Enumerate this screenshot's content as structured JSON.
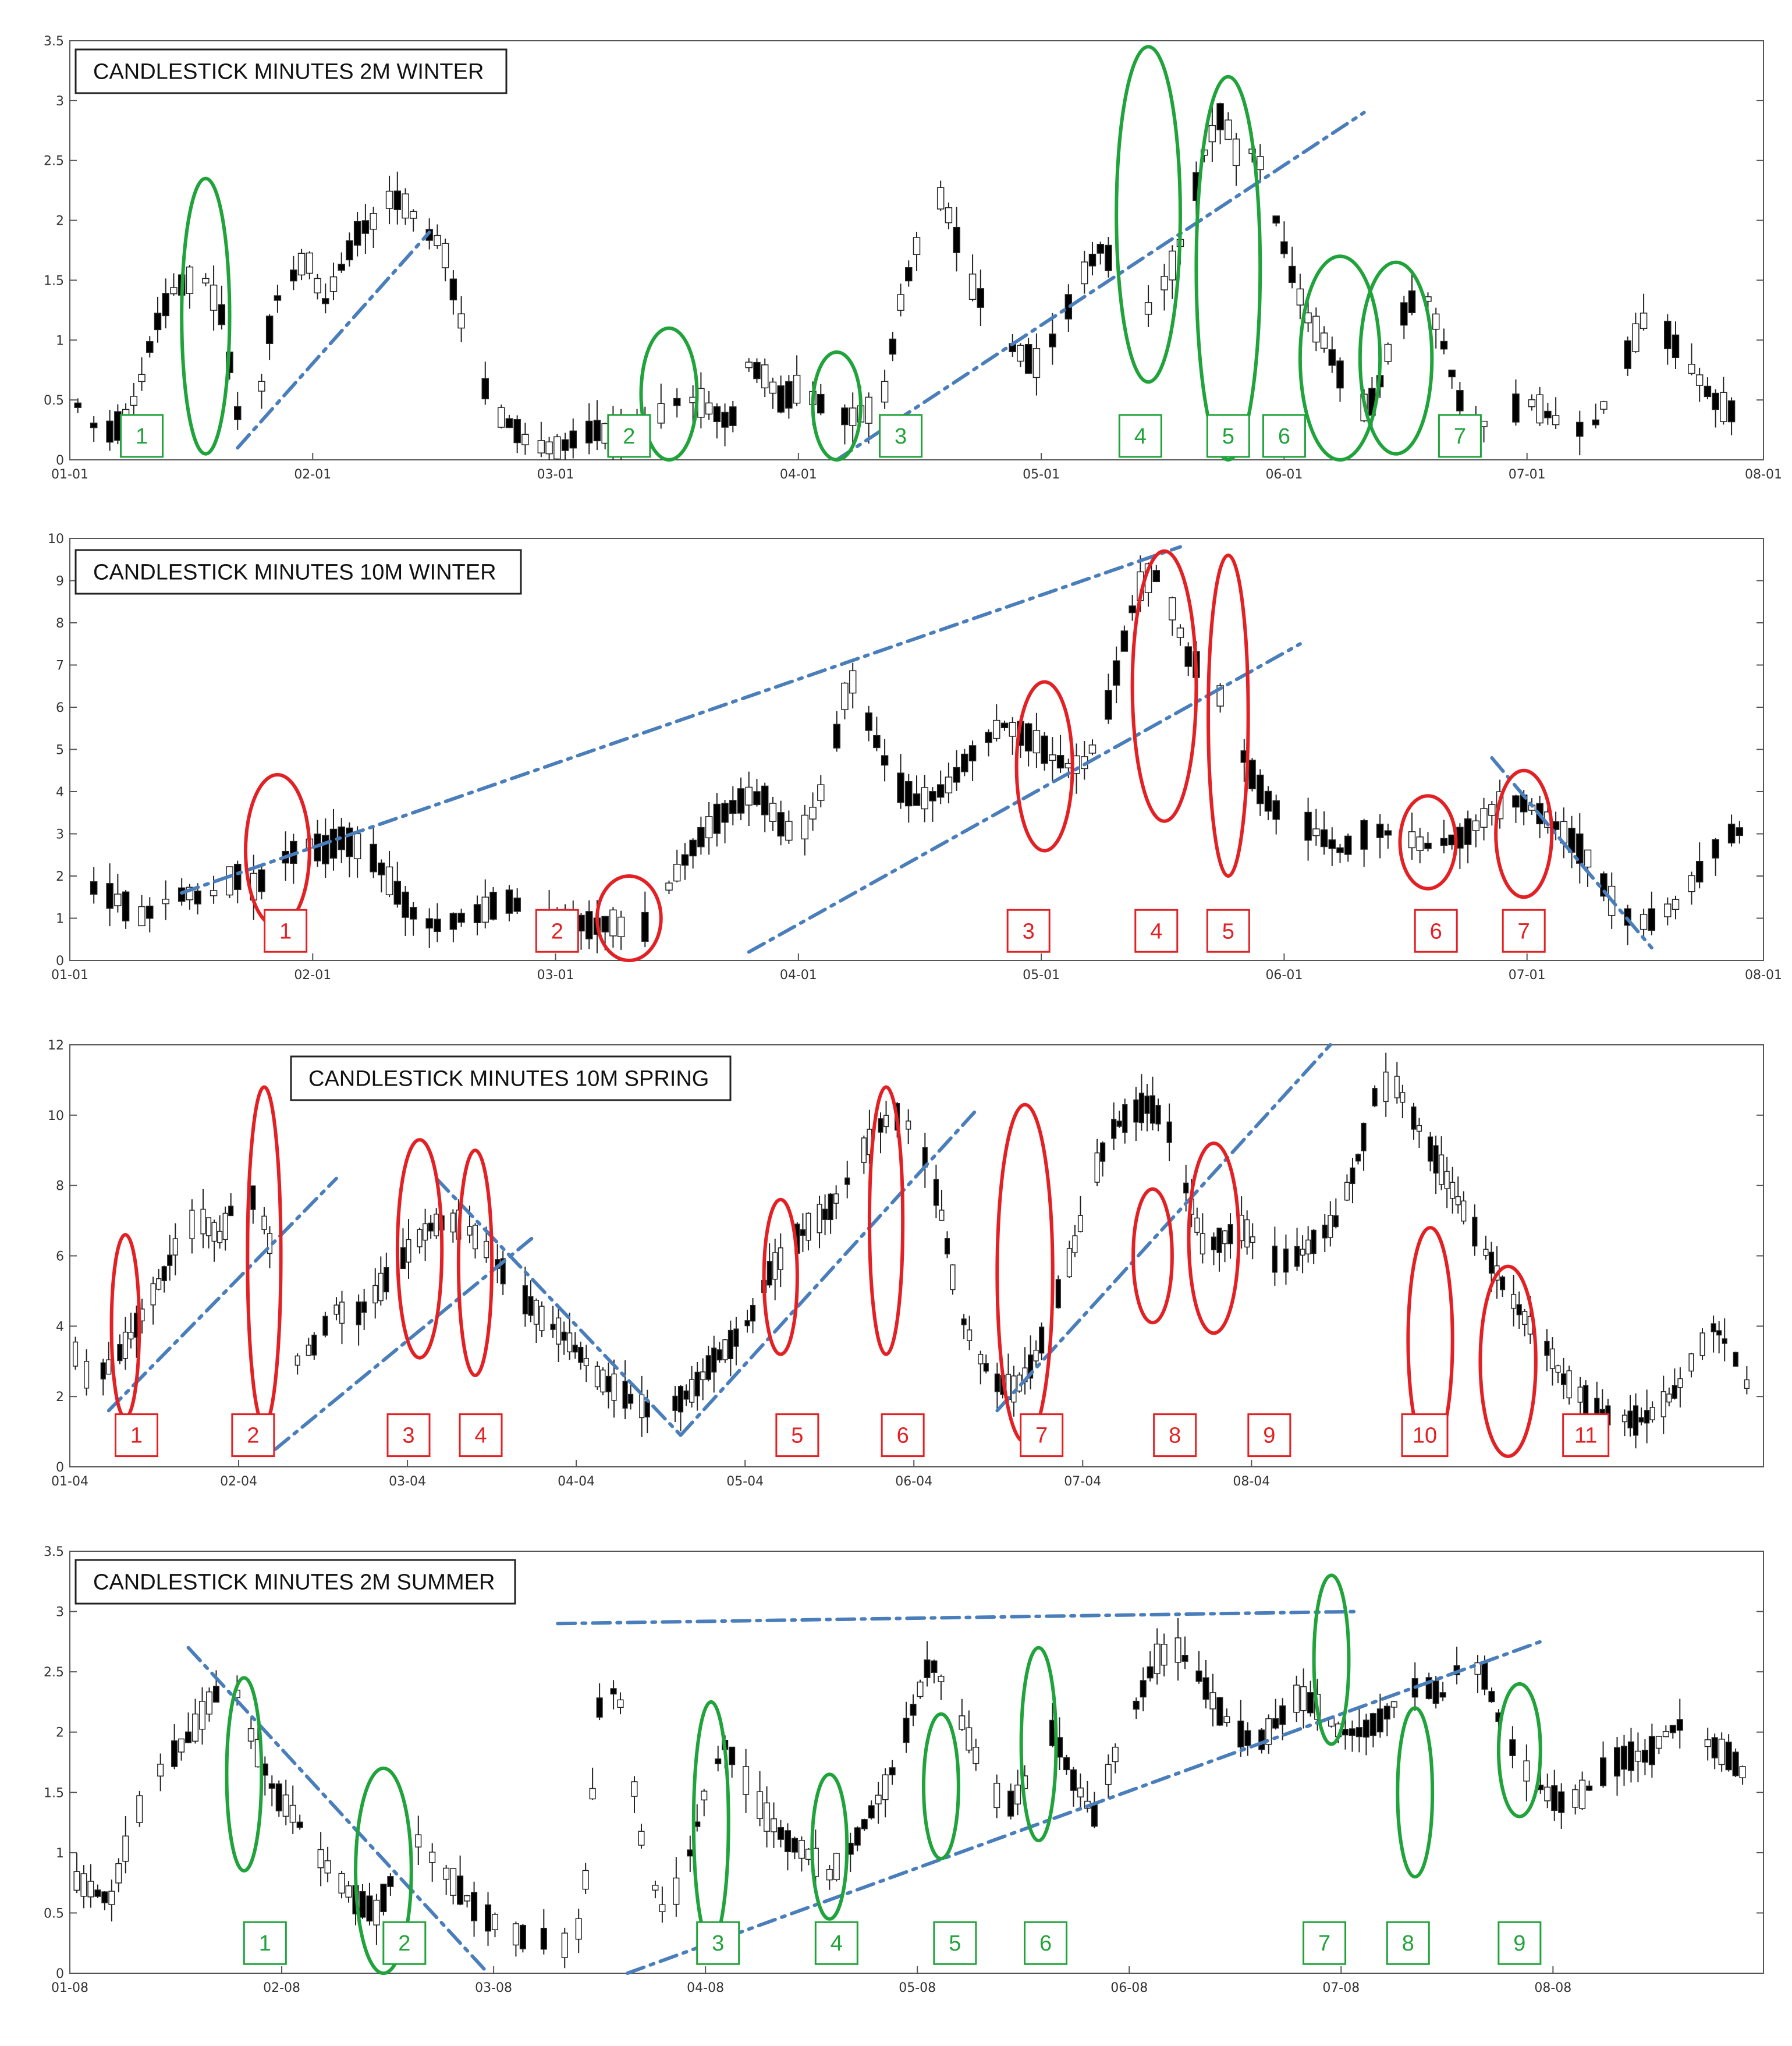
{
  "chart_data": [
    {
      "type": "candlestick",
      "title": "CANDLESTICK MINUTES 2M WINTER",
      "xlabel": "",
      "ylabel": "",
      "x_ticks": [
        "01-01",
        "02-01",
        "03-01",
        "04-01",
        "05-01",
        "06-01",
        "07-01",
        "08-01"
      ],
      "y_ticks": [
        "0",
        "0.5",
        "1",
        "1.5",
        "2",
        "2.5",
        "3",
        "3.5"
      ],
      "ylim": [
        0,
        3.5
      ],
      "annotation_color": "#1fa33a",
      "trend_color": "#4a7ebb",
      "labels": [
        "1",
        "2",
        "3",
        "4",
        "5",
        "6",
        "7"
      ],
      "levels": [
        0.55,
        0.35,
        0.2,
        0.3,
        0.55,
        1.1,
        1.4,
        1.5,
        1.5,
        1.2,
        0.3,
        0.3,
        1.3,
        1.5,
        1.7,
        1.3,
        1.6,
        1.9,
        2.0,
        2.2,
        2.1,
        1.9,
        1.8,
        1.2,
        0.8,
        0.4,
        0.3,
        0.15,
        0.1,
        0.1,
        0.2,
        0.25,
        0.2,
        0.2,
        0.3,
        0.4,
        0.5,
        0.5,
        0.4,
        0.3,
        0.8,
        0.7,
        0.5,
        0.6,
        0.5,
        0.4,
        0.35,
        0.4,
        0.5,
        1.3,
        1.8,
        2.3,
        2.0,
        1.5,
        1.3,
        1.0,
        0.9,
        0.8,
        1.0,
        1.3,
        1.6,
        1.8,
        1.4,
        1.2,
        1.3,
        1.6,
        2.0,
        2.6,
        2.9,
        2.5,
        2.6,
        2.1,
        1.6,
        1.2,
        1.0,
        0.7,
        0.4,
        0.5,
        1.0,
        1.3,
        1.4,
        1.0,
        0.5,
        0.3,
        0.3,
        0.4,
        0.5,
        0.4,
        0.3,
        0.25,
        0.3,
        0.6,
        0.9,
        1.2,
        1.1,
        0.9,
        0.7,
        0.5,
        0.4,
        0.5
      ],
      "ellipses": [
        {
          "day": 17,
          "level": 1.2,
          "rx_days": 3,
          "ry": 1.15
        },
        {
          "day": 75,
          "level": 0.55,
          "rx_days": 3.5,
          "ry": 0.55
        },
        {
          "day": 96,
          "level": 0.45,
          "rx_days": 3,
          "ry": 0.45
        },
        {
          "day": 135,
          "level": 2.05,
          "rx_days": 4,
          "ry": 1.4
        },
        {
          "day": 145,
          "level": 1.6,
          "rx_days": 4,
          "ry": 1.6
        },
        {
          "day": 159,
          "level": 0.85,
          "rx_days": 5,
          "ry": 0.85
        },
        {
          "day": 166,
          "level": 0.85,
          "rx_days": 4.5,
          "ry": 0.8
        }
      ],
      "label_positions": [
        {
          "day": 9,
          "level": 0.2
        },
        {
          "day": 70,
          "level": 0.2
        },
        {
          "day": 104,
          "level": 0.2
        },
        {
          "day": 134,
          "level": 0.2
        },
        {
          "day": 145,
          "level": 0.2
        },
        {
          "day": 152,
          "level": 0.2
        },
        {
          "day": 174,
          "level": 0.2
        }
      ],
      "trendlines": [
        {
          "from": [
            21,
            0.1
          ],
          "to": [
            45,
            1.9
          ]
        },
        {
          "from": [
            96,
            0.0
          ],
          "to": [
            162,
            2.9
          ]
        }
      ]
    },
    {
      "type": "candlestick",
      "title": "CANDLESTICK MINUTES 10M WINTER",
      "xlabel": "",
      "ylabel": "",
      "x_ticks": [
        "01-01",
        "02-01",
        "03-01",
        "04-01",
        "05-01",
        "06-01",
        "07-01",
        "08-01"
      ],
      "y_ticks": [
        "0",
        "1",
        "2",
        "3",
        "4",
        "5",
        "6",
        "7",
        "8",
        "9",
        "10"
      ],
      "ylim": [
        0,
        10
      ],
      "annotation_color": "#e32124",
      "trend_color": "#4a7ebb",
      "labels": [
        "1",
        "2",
        "3",
        "4",
        "5",
        "6",
        "7"
      ],
      "levels": [
        1.9,
        1.8,
        1.6,
        1.4,
        1.0,
        1.2,
        1.5,
        1.6,
        1.4,
        1.8,
        2.0,
        1.7,
        2.3,
        2.5,
        2.8,
        2.6,
        2.9,
        2.7,
        2.4,
        1.8,
        1.2,
        0.9,
        0.8,
        1.0,
        1.1,
        1.3,
        1.4,
        1.2,
        1.0,
        1.1,
        0.9,
        0.8,
        0.9,
        0.7,
        0.8,
        1.5,
        2.2,
        2.8,
        3.3,
        3.6,
        3.9,
        3.8,
        3.2,
        2.9,
        3.6,
        4.8,
        6.8,
        5.8,
        4.8,
        4.1,
        3.8,
        3.9,
        4.2,
        4.8,
        5.2,
        5.6,
        5.4,
        5.2,
        4.8,
        4.6,
        4.7,
        5.6,
        7.2,
        8.8,
        9.2,
        8.4,
        7.2,
        6.8,
        6.2,
        5.1,
        4.2,
        3.6,
        3.4,
        3.2,
        2.9,
        2.6,
        2.9,
        3.1,
        3.0,
        2.9,
        2.7,
        2.8,
        2.9,
        3.2,
        3.6,
        3.8,
        3.7,
        3.4,
        3.1,
        2.7,
        2.2,
        1.4,
        1.0,
        0.9,
        1.1,
        1.4,
        2.0,
        2.6,
        3.0,
        3.1
      ],
      "ellipses": [
        {
          "day": 26,
          "level": 2.6,
          "rx_days": 4,
          "ry": 1.8
        },
        {
          "day": 70,
          "level": 1.0,
          "rx_days": 4,
          "ry": 1.0
        },
        {
          "day": 122,
          "level": 4.6,
          "rx_days": 3.5,
          "ry": 2.0
        },
        {
          "day": 137,
          "level": 6.5,
          "rx_days": 4,
          "ry": 3.2
        },
        {
          "day": 145,
          "level": 5.8,
          "rx_days": 2.5,
          "ry": 3.8
        },
        {
          "day": 170,
          "level": 2.8,
          "rx_days": 3.5,
          "ry": 1.1
        },
        {
          "day": 182,
          "level": 3.0,
          "rx_days": 3.5,
          "ry": 1.5
        }
      ],
      "label_positions": [
        {
          "day": 27,
          "level": 0.7
        },
        {
          "day": 61,
          "level": 0.7
        },
        {
          "day": 120,
          "level": 0.7
        },
        {
          "day": 136,
          "level": 0.7
        },
        {
          "day": 145,
          "level": 0.7
        },
        {
          "day": 171,
          "level": 0.7
        },
        {
          "day": 182,
          "level": 0.7
        }
      ],
      "trendlines": [
        {
          "from": [
            14,
            1.6
          ],
          "to": [
            139,
            9.8
          ]
        },
        {
          "from": [
            85,
            0.2
          ],
          "to": [
            154,
            7.5
          ]
        },
        {
          "from": [
            178,
            4.8
          ],
          "to": [
            198,
            0.3
          ]
        }
      ]
    },
    {
      "type": "candlestick",
      "title": "CANDLESTICK MINUTES 10M SPRING",
      "xlabel": "",
      "ylabel": "",
      "x_ticks": [
        "01-04",
        "02-04",
        "03-04",
        "04-04",
        "05-04",
        "06-04",
        "07-04",
        "08-04"
      ],
      "y_ticks": [
        "0",
        "2",
        "4",
        "6",
        "8",
        "10",
        "12"
      ],
      "ylim": [
        0,
        12
      ],
      "annotation_color": "#e32124",
      "trend_color": "#4a7ebb",
      "labels": [
        "1",
        "2",
        "3",
        "4",
        "5",
        "6",
        "7",
        "8",
        "9",
        "10",
        "11"
      ],
      "levels": [
        3.5,
        2.5,
        2.8,
        3.5,
        4.5,
        5.5,
        6.8,
        7.0,
        6.5,
        8.0,
        7.5,
        5.5,
        3.0,
        3.5,
        4.5,
        4.2,
        4.8,
        5.5,
        6.2,
        6.8,
        7.0,
        6.8,
        6.2,
        5.5,
        4.8,
        4.2,
        3.8,
        3.2,
        2.5,
        2.2,
        1.8,
        1.5,
        1.8,
        2.2,
        3.0,
        3.5,
        4.2,
        5.5,
        6.2,
        6.8,
        7.2,
        8.0,
        9.0,
        9.8,
        10.0,
        9.2,
        7.5,
        4.5,
        3.2,
        2.4,
        2.2,
        3.0,
        4.5,
        6.0,
        8.0,
        9.5,
        10.0,
        10.3,
        9.8,
        8.0,
        6.2,
        6.5,
        6.8,
        6.2,
        5.8,
        6.0,
        6.5,
        7.0,
        8.5,
        10.5,
        11.0,
        10.0,
        9.0,
        8.0,
        7.0,
        6.0,
        5.0,
        4.2,
        3.5,
        2.5,
        2.0,
        1.5,
        1.4,
        1.3,
        1.6,
        2.2,
        3.2,
        4.0,
        3.2,
        2.0
      ],
      "ellipses": [
        {
          "day": 10,
          "level": 4.0,
          "rx_days": 2.5,
          "ry": 2.6
        },
        {
          "day": 35,
          "level": 6.0,
          "rx_days": 3,
          "ry": 4.8
        },
        {
          "day": 63,
          "level": 6.2,
          "rx_days": 4,
          "ry": 3.1
        },
        {
          "day": 73,
          "level": 5.8,
          "rx_days": 3,
          "ry": 3.2
        },
        {
          "day": 128,
          "level": 5.4,
          "rx_days": 3,
          "ry": 2.2
        },
        {
          "day": 147,
          "level": 7.0,
          "rx_days": 3,
          "ry": 3.8
        },
        {
          "day": 172,
          "level": 5.5,
          "rx_days": 5,
          "ry": 4.8
        },
        {
          "day": 195,
          "level": 6.0,
          "rx_days": 3.5,
          "ry": 1.9
        },
        {
          "day": 206,
          "level": 6.5,
          "rx_days": 4.5,
          "ry": 2.7
        },
        {
          "day": 245,
          "level": 3.6,
          "rx_days": 4,
          "ry": 3.2
        },
        {
          "day": 259,
          "level": 3.0,
          "rx_days": 5,
          "ry": 2.7
        }
      ],
      "label_positions": [
        {
          "day": 12,
          "level": 0.9
        },
        {
          "day": 33,
          "level": 0.9
        },
        {
          "day": 61,
          "level": 0.9
        },
        {
          "day": 74,
          "level": 0.9
        },
        {
          "day": 131,
          "level": 0.9
        },
        {
          "day": 150,
          "level": 0.9
        },
        {
          "day": 175,
          "level": 0.9
        },
        {
          "day": 199,
          "level": 0.9
        },
        {
          "day": 216,
          "level": 0.9
        },
        {
          "day": 244,
          "level": 0.9
        },
        {
          "day": 273,
          "level": 0.9
        }
      ],
      "trendlines": [
        {
          "from": [
            7,
            1.6
          ],
          "to": [
            48,
            8.2
          ]
        },
        {
          "from": [
            37,
            0.5
          ],
          "to": [
            84,
            6.6
          ]
        },
        {
          "from": [
            66,
            8.2
          ],
          "to": [
            110,
            0.9
          ]
        },
        {
          "from": [
            110,
            0.9
          ],
          "to": [
            163,
            10.1
          ]
        },
        {
          "from": [
            167,
            1.6
          ],
          "to": [
            227,
            12.0
          ]
        }
      ]
    },
    {
      "type": "candlestick",
      "title": "CANDLESTICK MINUTES 2M SUMMER",
      "xlabel": "",
      "ylabel": "",
      "x_ticks": [
        "01-08",
        "02-08",
        "03-08",
        "04-08",
        "05-08",
        "06-08",
        "07-08",
        "08-08"
      ],
      "y_ticks": [
        "0",
        "0.5",
        "1",
        "1.5",
        "2",
        "2.5",
        "3",
        "3.5"
      ],
      "ylim": [
        0,
        3.5
      ],
      "annotation_color": "#1fa33a",
      "trend_color": "#4a7ebb",
      "labels": [
        "1",
        "2",
        "3",
        "4",
        "5",
        "6",
        "7",
        "8",
        "9"
      ],
      "levels": [
        0.8,
        0.7,
        0.6,
        1.2,
        1.6,
        1.8,
        2.0,
        2.3,
        2.4,
        1.9,
        1.5,
        1.3,
        1.0,
        0.8,
        0.6,
        0.5,
        0.9,
        1.1,
        0.9,
        0.7,
        0.5,
        0.4,
        0.3,
        0.3,
        0.2,
        0.4,
        2.5,
        2.2,
        1.0,
        0.5,
        0.8,
        1.5,
        1.9,
        1.6,
        1.3,
        1.1,
        1.0,
        0.8,
        1.0,
        1.3,
        1.6,
        2.1,
        2.6,
        2.3,
        1.9,
        1.5,
        1.4,
        1.7,
        2.0,
        1.6,
        1.3,
        1.8,
        2.2,
        2.6,
        2.7,
        2.5,
        2.2,
        2.0,
        1.9,
        2.1,
        2.3,
        2.2,
        2.0,
        2.0,
        2.1,
        2.3,
        2.4,
        2.3,
        2.6,
        2.5,
        2.0,
        1.7,
        1.5,
        1.4,
        1.5,
        1.7,
        1.8,
        1.8,
        2.0,
        2.1,
        1.9,
        1.8,
        1.6
      ],
      "ellipses": [
        {
          "day": 25,
          "level": 1.65,
          "rx_days": 2.5,
          "ry": 0.8
        },
        {
          "day": 45,
          "level": 0.85,
          "rx_days": 4,
          "ry": 0.85
        },
        {
          "day": 92,
          "level": 1.25,
          "rx_days": 2.5,
          "ry": 1.0
        },
        {
          "day": 109,
          "level": 1.05,
          "rx_days": 2.5,
          "ry": 0.6
        },
        {
          "day": 125,
          "level": 1.55,
          "rx_days": 2.5,
          "ry": 0.6
        },
        {
          "day": 139,
          "level": 1.9,
          "rx_days": 2.5,
          "ry": 0.8
        },
        {
          "day": 181,
          "level": 2.6,
          "rx_days": 2.5,
          "ry": 0.7
        },
        {
          "day": 193,
          "level": 1.5,
          "rx_days": 2.5,
          "ry": 0.7
        },
        {
          "day": 208,
          "level": 1.85,
          "rx_days": 3,
          "ry": 0.55
        }
      ],
      "label_positions": [
        {
          "day": 28,
          "level": 0.25
        },
        {
          "day": 48,
          "level": 0.25
        },
        {
          "day": 93,
          "level": 0.25
        },
        {
          "day": 110,
          "level": 0.25
        },
        {
          "day": 127,
          "level": 0.25
        },
        {
          "day": 140,
          "level": 0.25
        },
        {
          "day": 180,
          "level": 0.25
        },
        {
          "day": 192,
          "level": 0.25
        },
        {
          "day": 208,
          "level": 0.25
        }
      ],
      "trendlines": [
        {
          "from": [
            17,
            2.7
          ],
          "to": [
            60,
            0.0
          ]
        },
        {
          "from": [
            70,
            2.9
          ],
          "to": [
            185,
            3.0
          ]
        },
        {
          "from": [
            80,
            0.0
          ],
          "to": [
            211,
            2.75
          ]
        }
      ]
    }
  ]
}
